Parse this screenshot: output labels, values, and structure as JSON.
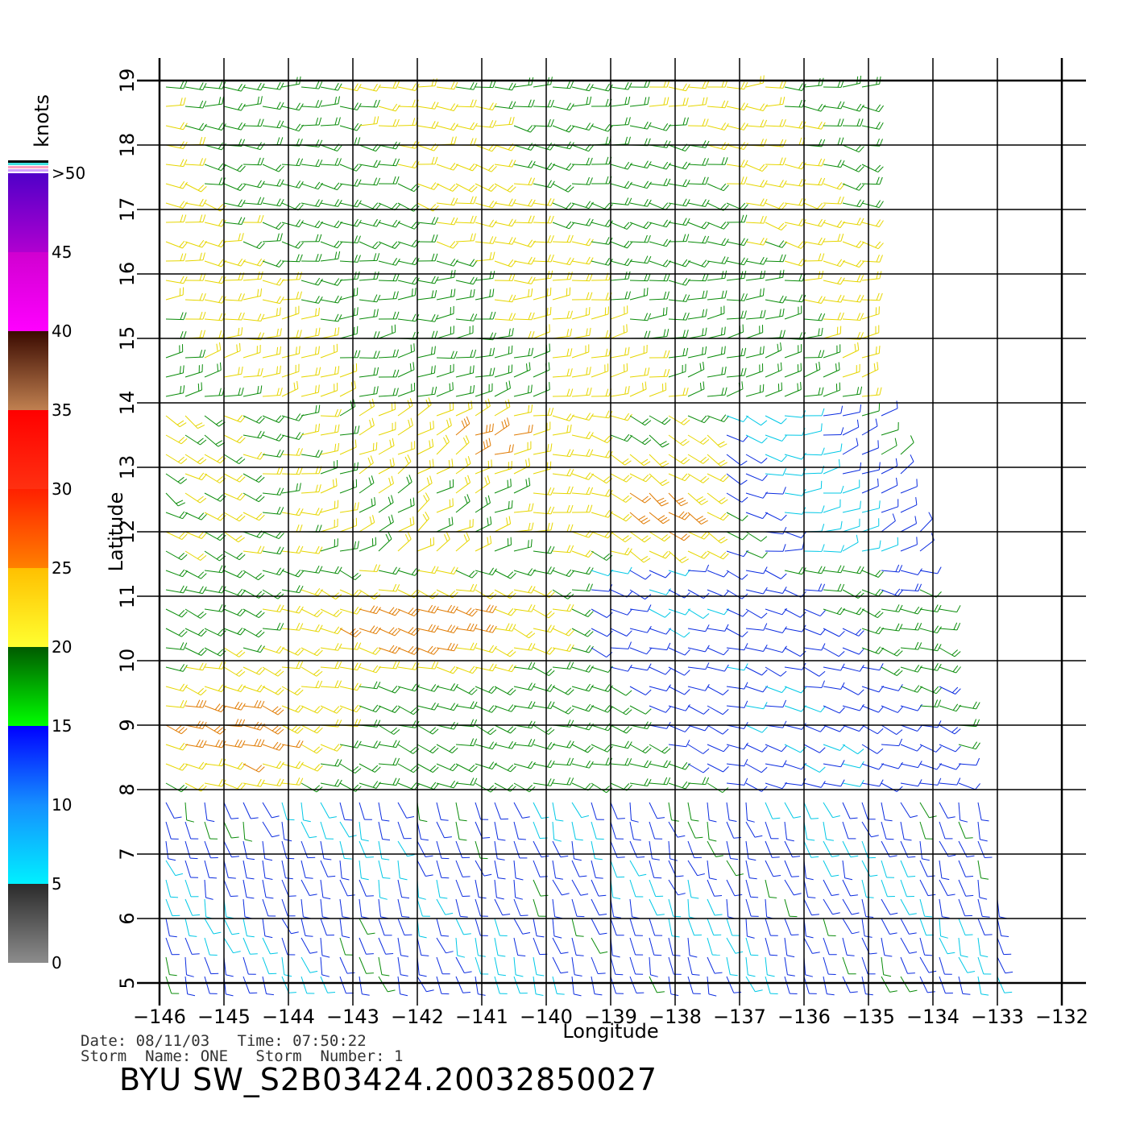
{
  "chart_data": {
    "type": "wind-barb-map",
    "xlabel": "Longitude",
    "ylabel": "Latitude",
    "xlim": [
      -146,
      -132
    ],
    "ylim": [
      5,
      19
    ],
    "x_ticks": [
      -146,
      -145,
      -144,
      -143,
      -142,
      -141,
      -140,
      -139,
      -138,
      -137,
      -136,
      -135,
      -134,
      -133,
      -132
    ],
    "x_tick_labels": [
      "−146",
      "−145",
      "−144",
      "−143",
      "−142",
      "−141",
      "−140",
      "−139",
      "−138",
      "−137",
      "−136",
      "−135",
      "−134",
      "−133",
      "−132"
    ],
    "y_ticks": [
      5,
      6,
      7,
      8,
      9,
      10,
      11,
      12,
      13,
      14,
      15,
      16,
      17,
      18,
      19
    ],
    "y_tick_labels": [
      "5",
      "6",
      "7",
      "8",
      "9",
      "10",
      "11",
      "12",
      "13",
      "14",
      "15",
      "16",
      "17",
      "18",
      "19"
    ],
    "grid": true,
    "swath_boundary_east": [
      [
        19,
        -135
      ],
      [
        16,
        -135
      ],
      [
        14,
        -134.8
      ],
      [
        13,
        -134.4
      ],
      [
        11,
        -133.9
      ],
      [
        9,
        -133.5
      ],
      [
        7,
        -133.1
      ],
      [
        5,
        -132.7
      ]
    ],
    "colorbar": {
      "title": "knots",
      "labels": [
        "0",
        "5",
        "10",
        "15",
        "20",
        "25",
        "30",
        "35",
        "40",
        "45",
        ">50"
      ],
      "bands": [
        {
          "from": 0,
          "to": 5,
          "top": "#2a2a2a",
          "bottom": "#8c8c8c"
        },
        {
          "from": 5,
          "to": 10,
          "top": "#1590ff",
          "bottom": "#00f0ff"
        },
        {
          "from": 10,
          "to": 15,
          "top": "#0000ff",
          "bottom": "#1590ff"
        },
        {
          "from": 15,
          "to": 20,
          "top": "#005a00",
          "bottom": "#00ff00"
        },
        {
          "from": 20,
          "to": 25,
          "top": "#ffc000",
          "bottom": "#ffff30"
        },
        {
          "from": 25,
          "to": 30,
          "top": "#ff2000",
          "bottom": "#ff8000"
        },
        {
          "from": 30,
          "to": 35,
          "top": "#ff0000",
          "bottom": "#ff3010"
        },
        {
          "from": 35,
          "to": 40,
          "top": "#3a0a00",
          "bottom": "#c08050"
        },
        {
          "from": 40,
          "to": 45,
          "top": "#d000d0",
          "bottom": "#ff00ff"
        },
        {
          "from": 45,
          "to": 50,
          "top": "#5000c8",
          "bottom": "#b000d0"
        }
      ]
    },
    "speed_colors": [
      "#555555",
      "#00c8e6",
      "#0b2ce0",
      "#0a8c0a",
      "#e6d600",
      "#e07a00",
      "#cc1a00",
      "#7a3a10",
      "#cc00cc",
      "#5a10c0"
    ]
  },
  "info": {
    "date_label": "Date:",
    "date": "08/11/03",
    "time_label": "Time:",
    "time": "07:50:22",
    "storm_name_label": "Storm  Name:",
    "storm_name": "ONE",
    "storm_number_label": "Storm  Number:",
    "storm_number": "1",
    "product_id": "BYU  SW_S2B03424.20032850027"
  }
}
